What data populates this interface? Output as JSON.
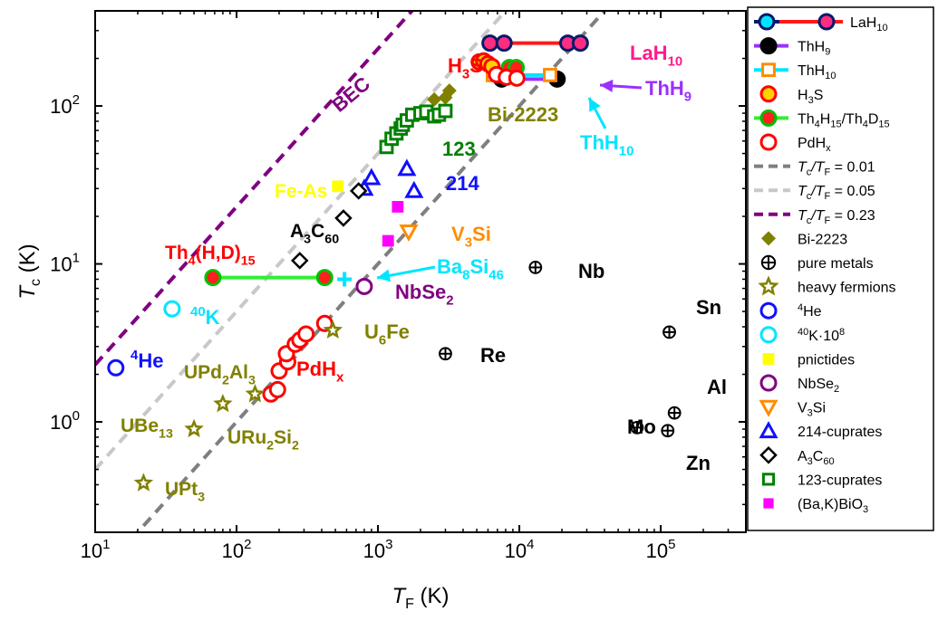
{
  "chart_data": {
    "type": "scatter",
    "x_scale": "log",
    "y_scale": "log",
    "xlim": [
      10,
      400000
    ],
    "ylim": [
      0.2,
      400
    ],
    "grid": false,
    "legend_position": "right",
    "xlabel": {
      "main": "T",
      "sub": "F",
      "rest": " (K)"
    },
    "ylabel": {
      "main": "T",
      "sub": "c",
      "rest": " (K)"
    },
    "x_ticks": [
      {
        "value": 10,
        "base": "10",
        "exp": "1"
      },
      {
        "value": 100,
        "base": "10",
        "exp": "2"
      },
      {
        "value": 1000,
        "base": "10",
        "exp": "3"
      },
      {
        "value": 10000,
        "base": "10",
        "exp": "4"
      },
      {
        "value": 100000,
        "base": "10",
        "exp": "5"
      }
    ],
    "y_ticks": [
      {
        "value": 1,
        "base": "10",
        "exp": "0"
      },
      {
        "value": 10,
        "base": "10",
        "exp": "1"
      },
      {
        "value": 100,
        "base": "10",
        "exp": "2"
      }
    ],
    "lines": [
      {
        "name": "Tc/TF = 0.01",
        "ratio": 0.01,
        "color": "#7f7f7f"
      },
      {
        "name": "Tc/TF = 0.05",
        "ratio": 0.05,
        "color": "#c8c8c8"
      },
      {
        "name": "Tc/TF = 0.23",
        "ratio": 0.23,
        "color": "#800080"
      }
    ],
    "series": [
      {
        "name": "LaH10",
        "marker": "circle-dot",
        "color": "#ff2d80",
        "stroke": "#0a1a6a",
        "points": [
          [
            6200,
            250
          ],
          [
            7800,
            250
          ],
          [
            22000,
            250
          ],
          [
            27000,
            250
          ]
        ],
        "connectors": [
          {
            "from": [
              6200,
              250
            ],
            "to": [
              7800,
              250
            ],
            "color": "#0a1a6a"
          },
          {
            "from": [
              7800,
              250
            ],
            "to": [
              22000,
              250
            ],
            "color": "#ff1a1a"
          }
        ]
      },
      {
        "name": "ThH9",
        "marker": "circle-dot",
        "color": "#000000",
        "stroke": "#000000",
        "points": [
          [
            7500,
            148
          ],
          [
            18500,
            148
          ]
        ],
        "connectors": [
          {
            "from": [
              7500,
              148
            ],
            "to": [
              18500,
              148
            ],
            "color": "#9b30ff"
          }
        ]
      },
      {
        "name": "ThH10",
        "marker": "square-open",
        "color": "#ff8c00",
        "stroke": "#00e5ff",
        "points": [
          [
            6500,
            157
          ],
          [
            16500,
            157
          ]
        ],
        "connectors": [
          {
            "from": [
              6500,
              157
            ],
            "to": [
              16500,
              157
            ],
            "color": "#00e5ff"
          }
        ]
      },
      {
        "name": "H3S",
        "marker": "circle-fill",
        "color": "#ffd000",
        "stroke": "#ff0000",
        "points": [
          [
            5200,
            190
          ],
          [
            5600,
            193
          ],
          [
            6000,
            185
          ],
          [
            6400,
            178
          ]
        ]
      },
      {
        "name": "Th4H15/Th4D15",
        "marker": "circle-fill",
        "color": "#ff2020",
        "stroke": "#00c000",
        "points": [
          [
            68,
            8.2
          ],
          [
            420,
            8.2
          ],
          [
            8500,
            175
          ],
          [
            9500,
            175
          ]
        ],
        "connectors": [
          {
            "from": [
              68,
              8.2
            ],
            "to": [
              420,
              8.2
            ],
            "color": "#33ee33"
          },
          {
            "from": [
              8500,
              175
            ],
            "to": [
              9500,
              175
            ],
            "color": "#33ee33"
          }
        ]
      },
      {
        "name": "PdHx",
        "marker": "circle-open",
        "color": "#ff0000",
        "points": [
          [
            175,
            1.5
          ],
          [
            195,
            1.6
          ],
          [
            200,
            2.1
          ],
          [
            230,
            2.4
          ],
          [
            225,
            2.7
          ],
          [
            260,
            3.1
          ],
          [
            280,
            3.3
          ],
          [
            310,
            3.6
          ],
          [
            420,
            4.2
          ],
          [
            6900,
            158
          ],
          [
            8100,
            152
          ],
          [
            9600,
            150
          ]
        ]
      },
      {
        "name": "Bi-2223",
        "marker": "diamond-fill",
        "color": "#808000",
        "points": [
          [
            2500,
            110
          ],
          [
            3000,
            113
          ],
          [
            3200,
            125
          ]
        ]
      },
      {
        "name": "pure metals",
        "marker": "circle-plus",
        "color": "#000000",
        "points": [
          [
            13000,
            9.5
          ],
          [
            3000,
            2.7
          ],
          [
            115000,
            3.7
          ],
          [
            125000,
            1.14
          ],
          [
            68000,
            0.92
          ],
          [
            112000,
            0.88
          ]
        ]
      },
      {
        "name": "heavy fermions",
        "marker": "star",
        "color": "#808000",
        "points": [
          [
            22,
            0.41
          ],
          [
            50,
            0.9
          ],
          [
            80,
            1.3
          ],
          [
            135,
            1.5
          ],
          [
            480,
            3.8
          ]
        ]
      },
      {
        "name": "4He",
        "marker": "circle-open",
        "color": "#1010ff",
        "points": [
          [
            14,
            2.2
          ]
        ]
      },
      {
        "name": "40K·10^8",
        "marker": "circle-open",
        "color": "#00e5ff",
        "points": [
          [
            35,
            5.2
          ]
        ]
      },
      {
        "name": "pnictides",
        "marker": "square-fill",
        "color": "#ffff00",
        "points": [
          [
            520,
            31
          ]
        ]
      },
      {
        "name": "NbSe2",
        "marker": "circle-open",
        "color": "#800080",
        "points": [
          [
            800,
            7.2
          ]
        ]
      },
      {
        "name": "V3Si",
        "marker": "triangle-down",
        "color": "#ff8c00",
        "points": [
          [
            1650,
            16
          ]
        ]
      },
      {
        "name": "214-cuprates",
        "marker": "triangle-up",
        "color": "#1010ff",
        "points": [
          [
            800,
            30
          ],
          [
            900,
            35
          ],
          [
            1600,
            40
          ],
          [
            1800,
            29
          ]
        ]
      },
      {
        "name": "A3C60",
        "marker": "diamond-open",
        "color": "#000000",
        "points": [
          [
            730,
            29
          ],
          [
            570,
            19.5
          ],
          [
            280,
            10.5
          ]
        ]
      },
      {
        "name": "123-cuprates",
        "marker": "square-open",
        "color": "#008000",
        "points": [
          [
            1150,
            55
          ],
          [
            1250,
            62
          ],
          [
            1350,
            67
          ],
          [
            1450,
            72
          ],
          [
            1500,
            76
          ],
          [
            1600,
            81
          ],
          [
            1750,
            88
          ],
          [
            2000,
            90
          ],
          [
            2200,
            92
          ],
          [
            2500,
            86
          ],
          [
            2700,
            88
          ],
          [
            3000,
            93
          ]
        ]
      },
      {
        "name": "(Ba,K)BiO3",
        "marker": "square-fill",
        "color": "#ff00ff",
        "points": [
          [
            1180,
            14
          ],
          [
            1380,
            23
          ]
        ]
      },
      {
        "name": "Ba8Si46",
        "marker": "plus",
        "color": "#00e5ff",
        "points": [
          [
            580,
            8
          ]
        ]
      }
    ],
    "legend": [
      {
        "text": "LaH",
        "sub": "10",
        "tail": "",
        "symbol": "line-circles"
      },
      {
        "text": "ThH",
        "sub": "9",
        "tail": "",
        "symbol": "line-circle-dot"
      },
      {
        "text": "ThH",
        "sub": "10",
        "tail": "",
        "symbol": "line-square"
      },
      {
        "text": "H",
        "sub": "3",
        "tail": "S",
        "symbol": "circle-fill"
      },
      {
        "text": "Th",
        "sub": "4",
        "tail": "H",
        "sub2": "15",
        "tail2": "/Th",
        "sub3": "4",
        "tail3": "D",
        "sub4": "15",
        "symbol": "line-circle-fill"
      },
      {
        "text": "PdH",
        "sub": "x",
        "tail": "",
        "symbol": "circle-open"
      },
      {
        "text": "T",
        "sub": "c",
        "tail": "/T",
        "sub2": "F",
        "tail2": " = 0.01",
        "italic": true,
        "symbol": "dash-0"
      },
      {
        "text": "T",
        "sub": "c",
        "tail": "/T",
        "sub2": "F",
        "tail2": " = 0.05",
        "italic": true,
        "symbol": "dash-1"
      },
      {
        "text": "T",
        "sub": "c",
        "tail": "/T",
        "sub2": "F",
        "tail2": " = 0.23",
        "italic": true,
        "symbol": "dash-2"
      },
      {
        "text": "Bi-2223",
        "symbol": "diamond-fill"
      },
      {
        "text": "pure metals",
        "symbol": "circle-plus"
      },
      {
        "text": "heavy fermions",
        "symbol": "star"
      },
      {
        "text": "",
        "sup": "4",
        "tail": "He",
        "symbol": "circle-open-blue"
      },
      {
        "text": "",
        "sup": "40",
        "tail": "K·10",
        "sup2": "8",
        "symbol": "circle-open-cyan"
      },
      {
        "text": "pnictides",
        "symbol": "square-yellow"
      },
      {
        "text": "NbSe",
        "sub": "2",
        "symbol": "circle-open-purple"
      },
      {
        "text": "V",
        "sub": "3",
        "tail": "Si",
        "symbol": "triangle-down"
      },
      {
        "text": "214-cuprates",
        "symbol": "triangle-up"
      },
      {
        "text": "A",
        "sub": "3",
        "tail": "C",
        "sub2": "60",
        "symbol": "diamond-open"
      },
      {
        "text": "123-cuprates",
        "symbol": "square-green"
      },
      {
        "text": "(Ba,K)BiO",
        "sub": "3",
        "symbol": "square-magenta"
      }
    ],
    "annotations": [
      {
        "id": "lah10",
        "color": "#ff1a8c",
        "parts": [
          [
            "LaH",
            ""
          ],
          [
            "10",
            "sub"
          ]
        ]
      },
      {
        "id": "h3s",
        "color": "#ff0000",
        "parts": [
          [
            "H",
            ""
          ],
          [
            "3",
            "sub"
          ],
          [
            "S",
            ""
          ]
        ]
      },
      {
        "id": "thh9",
        "color": "#9b30ff",
        "parts": [
          [
            "ThH",
            ""
          ],
          [
            "9",
            "sub"
          ]
        ]
      },
      {
        "id": "thh10",
        "color": "#00e5ff",
        "parts": [
          [
            "ThH",
            ""
          ],
          [
            "10",
            "sub"
          ]
        ]
      },
      {
        "id": "bi2223",
        "color": "#808000",
        "parts": [
          [
            "Bi-2223",
            ""
          ]
        ]
      },
      {
        "id": "c123",
        "color": "#008000",
        "parts": [
          [
            "123",
            ""
          ]
        ]
      },
      {
        "id": "c214",
        "color": "#1010ff",
        "parts": [
          [
            "214",
            ""
          ]
        ]
      },
      {
        "id": "feas",
        "color": "#ffff00",
        "parts": [
          [
            "Fe-As",
            ""
          ]
        ]
      },
      {
        "id": "a3c60",
        "color": "#000000",
        "parts": [
          [
            "A",
            ""
          ],
          [
            "3",
            "sub"
          ],
          [
            "C",
            ""
          ],
          [
            "60",
            "sub"
          ]
        ]
      },
      {
        "id": "v3si",
        "color": "#ff8c00",
        "parts": [
          [
            "V",
            ""
          ],
          [
            "3",
            "sub"
          ],
          [
            "Si",
            ""
          ]
        ]
      },
      {
        "id": "th4hd",
        "color": "#ff0000",
        "parts": [
          [
            "Th",
            ""
          ],
          [
            "4",
            "sub"
          ],
          [
            "(H,D)",
            ""
          ],
          [
            "15",
            "sub"
          ]
        ]
      },
      {
        "id": "ba8si46",
        "color": "#00e5ff",
        "parts": [
          [
            "Ba",
            ""
          ],
          [
            "8",
            "sub"
          ],
          [
            "Si",
            ""
          ],
          [
            "46",
            "sub"
          ]
        ]
      },
      {
        "id": "nbse2",
        "color": "#800080",
        "parts": [
          [
            "NbSe",
            ""
          ],
          [
            "2",
            "sub"
          ]
        ]
      },
      {
        "id": "nb",
        "color": "#000000",
        "parts": [
          [
            "Nb",
            ""
          ]
        ]
      },
      {
        "id": "k40",
        "color": "#00e5ff",
        "parts": [
          [
            "40",
            "sup"
          ],
          [
            "K",
            ""
          ]
        ]
      },
      {
        "id": "u6fe",
        "color": "#808000",
        "parts": [
          [
            "U",
            ""
          ],
          [
            "6",
            "sub"
          ],
          [
            "Fe",
            ""
          ]
        ]
      },
      {
        "id": "he4",
        "color": "#1010ff",
        "parts": [
          [
            "4",
            "sup"
          ],
          [
            "He",
            ""
          ]
        ]
      },
      {
        "id": "upd2al3",
        "color": "#808000",
        "parts": [
          [
            "UPd",
            ""
          ],
          [
            "2",
            "sub"
          ],
          [
            "Al",
            ""
          ],
          [
            "3",
            "sub"
          ]
        ]
      },
      {
        "id": "pdhx",
        "color": "#ff0000",
        "parts": [
          [
            "PdH",
            ""
          ],
          [
            "x",
            "sub"
          ]
        ]
      },
      {
        "id": "re",
        "color": "#000000",
        "parts": [
          [
            "Re",
            ""
          ]
        ]
      },
      {
        "id": "sn",
        "color": "#000000",
        "parts": [
          [
            "Sn",
            ""
          ]
        ]
      },
      {
        "id": "al",
        "color": "#000000",
        "parts": [
          [
            "Al",
            ""
          ]
        ]
      },
      {
        "id": "mo",
        "color": "#000000",
        "parts": [
          [
            "Mo",
            ""
          ]
        ]
      },
      {
        "id": "zn",
        "color": "#000000",
        "parts": [
          [
            "Zn",
            ""
          ]
        ]
      },
      {
        "id": "ube13",
        "color": "#808000",
        "parts": [
          [
            "UBe",
            ""
          ],
          [
            "13",
            "sub"
          ]
        ]
      },
      {
        "id": "uru2si2",
        "color": "#808000",
        "parts": [
          [
            "URu",
            ""
          ],
          [
            "2",
            "sub"
          ],
          [
            "Si",
            ""
          ],
          [
            "2",
            "sub"
          ]
        ]
      },
      {
        "id": "upt3",
        "color": "#808000",
        "parts": [
          [
            "UPt",
            ""
          ],
          [
            "3",
            "sub"
          ]
        ]
      },
      {
        "id": "bec",
        "color": "#800080",
        "parts": [
          [
            "BEC",
            ""
          ]
        ]
      }
    ]
  }
}
